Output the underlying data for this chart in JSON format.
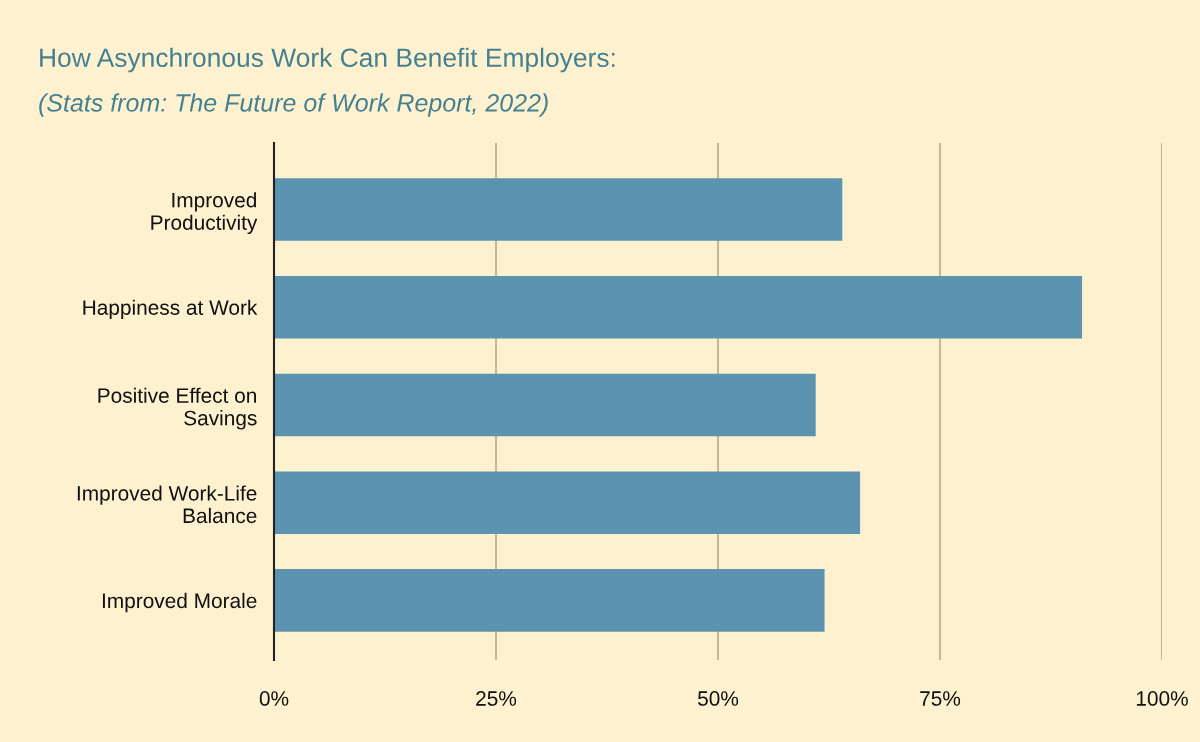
{
  "chart_data": {
    "type": "bar",
    "orientation": "horizontal",
    "title": "How Asynchronous Work Can Benefit Employers:",
    "subtitle": "(Stats from: The Future of Work Report, 2022)",
    "categories": [
      "Improved\nProductivity",
      "Happiness at Work",
      "Positive Effect on\nSavings",
      "Improved Work-Life\nBalance",
      "Improved Morale"
    ],
    "values": [
      64,
      91,
      61,
      66,
      62
    ],
    "color": "#5b93b0",
    "xlim": [
      0,
      100
    ],
    "xticks": [
      {
        "value": 0,
        "label": "0%"
      },
      {
        "value": 25,
        "label": "25%"
      },
      {
        "value": 50,
        "label": "50%"
      },
      {
        "value": 75,
        "label": "75%"
      },
      {
        "value": 100,
        "label": "100%"
      }
    ],
    "grid": "x"
  }
}
